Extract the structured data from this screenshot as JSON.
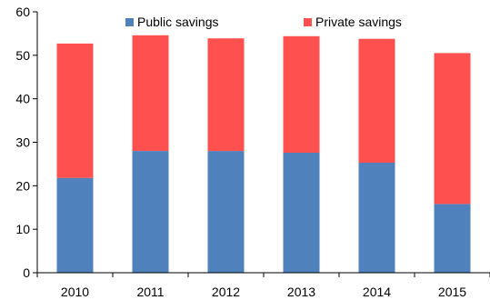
{
  "chart_data": {
    "type": "bar",
    "stacked": true,
    "categories": [
      "2010",
      "2011",
      "2012",
      "2013",
      "2014",
      "2015"
    ],
    "series": [
      {
        "name": "Public savings",
        "color": "#4f81bd",
        "values": [
          21.8,
          28.0,
          28.0,
          27.6,
          25.3,
          15.8
        ]
      },
      {
        "name": "Private savings",
        "color": "#ff5050",
        "values": [
          30.9,
          26.6,
          25.9,
          26.8,
          28.5,
          34.7
        ]
      }
    ],
    "ylim": [
      0,
      60
    ],
    "yticks": [
      0,
      10,
      20,
      30,
      40,
      50,
      60
    ],
    "grid": false,
    "legend_position": "top",
    "title": "",
    "xlabel": "",
    "ylabel": ""
  }
}
